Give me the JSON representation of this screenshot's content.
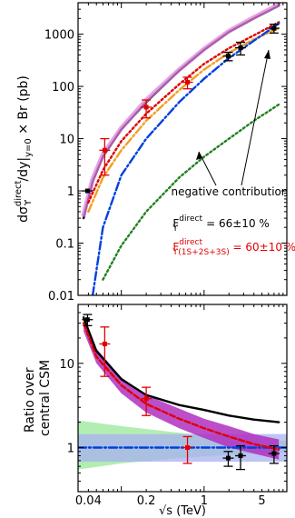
{
  "chart_data": [
    {
      "type": "line",
      "panel": "top",
      "ylabel": {
        "prefix": "dσ",
        "sup": "direct",
        "sub": "ϒ",
        "mid": "/dy|",
        "sub2": "y=0",
        "suffix": " × Br (pb)"
      },
      "yscale": "log",
      "xscale": "log",
      "xlim": [
        0.03,
        10
      ],
      "ylim": [
        0.01,
        4000
      ],
      "y_ticks": [
        {
          "value": 0.01,
          "label": "0.01"
        },
        {
          "value": 0.1,
          "label": "0.1"
        },
        {
          "value": 1,
          "label": "1"
        },
        {
          "value": 10,
          "label": "10"
        },
        {
          "value": 100,
          "label": "100"
        },
        {
          "value": 1000,
          "label": "1000"
        }
      ],
      "series": [
        {
          "style": "solid",
          "color": "#000000",
          "x": [
            0.035,
            0.045,
            0.06,
            0.1,
            0.2,
            0.5,
            1,
            2,
            4,
            8
          ],
          "y": [
            0.3,
            1.5,
            4.5,
            15,
            50,
            200,
            500,
            1100,
            2000,
            3500
          ]
        },
        {
          "style": "dotted-band",
          "color": "#e080e0",
          "x": [
            0.035,
            0.045,
            0.06,
            0.1,
            0.2,
            0.5,
            1,
            2,
            4,
            8
          ],
          "y": [
            0.35,
            1.7,
            5,
            16,
            55,
            210,
            520,
            1150,
            2100,
            3700
          ]
        },
        {
          "style": "dotted",
          "color": "#e00000",
          "x": [
            0.04,
            0.06,
            0.1,
            0.2,
            0.5,
            1,
            2,
            4,
            8
          ],
          "y": [
            0.6,
            2.5,
            9,
            30,
            110,
            270,
            540,
            950,
            1700
          ]
        },
        {
          "style": "dashdot",
          "color": "#f0a020",
          "x": [
            0.04,
            0.06,
            0.1,
            0.2,
            0.5,
            1,
            2,
            4,
            8
          ],
          "y": [
            0.4,
            1.8,
            6,
            22,
            85,
            210,
            440,
            800,
            1300
          ]
        },
        {
          "style": "dashdot",
          "color": "#0040e0",
          "x": [
            0.045,
            0.06,
            0.1,
            0.2,
            0.5,
            1,
            2,
            4,
            8
          ],
          "y": [
            0.01,
            0.2,
            2,
            10,
            50,
            140,
            350,
            750,
            1600
          ]
        },
        {
          "style": "dotted",
          "color": "#208020",
          "x": [
            0.06,
            0.1,
            0.2,
            0.5,
            1,
            2,
            4,
            8
          ],
          "y": [
            0.02,
            0.09,
            0.4,
            1.8,
            4.5,
            10,
            22,
            45
          ]
        }
      ],
      "points": [
        {
          "x": 0.039,
          "y": 1.0,
          "err": 0,
          "color": "#000000"
        },
        {
          "x": 0.063,
          "y": 6,
          "err": 4,
          "color": "#e00000"
        },
        {
          "x": 0.2,
          "y": 40,
          "err": 15,
          "color": "#e00000"
        },
        {
          "x": 0.63,
          "y": 120,
          "err": 30,
          "color": "#e00000"
        },
        {
          "x": 1.96,
          "y": 380,
          "err": 70,
          "color": "#000000"
        },
        {
          "x": 2.76,
          "y": 550,
          "err": 150,
          "color": "#000000"
        },
        {
          "x": 7,
          "y": 1300,
          "err": 250,
          "color": "#000000"
        }
      ],
      "annotations": {
        "negative_label": "negative contribution",
        "frac1": {
          "prefix": "F",
          "sub": "ϒ",
          "sup": "direct",
          "value": " = 66±10 %"
        },
        "frac2": {
          "prefix": "F",
          "sub": "ϒ(1S+2S+3S)",
          "sup": "direct",
          "value": " = 60±10 %"
        }
      }
    },
    {
      "type": "line",
      "panel": "bottom",
      "xlabel": "√s (TeV)",
      "ylabel": [
        "Ratio over",
        "central CSM"
      ],
      "yscale": "log",
      "xscale": "log",
      "xlim": [
        0.03,
        10
      ],
      "ylim": [
        0.3,
        50
      ],
      "x_ticks": [
        {
          "value": 0.04,
          "label": "0.04"
        },
        {
          "value": 0.2,
          "label": "0.2"
        },
        {
          "value": 1,
          "label": "1"
        },
        {
          "value": 5,
          "label": "5"
        }
      ],
      "y_ticks": [
        {
          "value": 1,
          "label": "1"
        },
        {
          "value": 10,
          "label": "10"
        }
      ],
      "series": [
        {
          "style": "dashdot",
          "color": "#0040e0",
          "x": [
            0.03,
            10
          ],
          "y": [
            1,
            1
          ]
        },
        {
          "style": "solid",
          "color": "#000000",
          "x": [
            0.035,
            0.05,
            0.1,
            0.2,
            0.5,
            1,
            2,
            4,
            8
          ],
          "y": [
            35,
            14,
            6.5,
            4.2,
            3.2,
            2.8,
            2.4,
            2.15,
            2.0
          ]
        },
        {
          "style": "dashed",
          "color": "#e00000",
          "x": [
            0.035,
            0.05,
            0.1,
            0.2,
            0.5,
            1,
            2,
            4,
            8
          ],
          "y": [
            30,
            12,
            5.5,
            3.3,
            2.2,
            1.7,
            1.35,
            1.1,
            0.95
          ]
        }
      ],
      "bands": [
        {
          "color": "#98e898",
          "x": [
            0.03,
            0.1,
            0.5,
            2,
            10
          ],
          "lo": [
            0.55,
            0.65,
            0.75,
            0.82,
            0.88
          ],
          "hi": [
            2.1,
            1.8,
            1.5,
            1.3,
            1.2
          ]
        },
        {
          "color": "#a8b0f0",
          "x": [
            0.03,
            10
          ],
          "lo": [
            0.68,
            0.68
          ],
          "hi": [
            1.45,
            1.45
          ]
        },
        {
          "color": "#b030c0",
          "x": [
            0.035,
            0.05,
            0.1,
            0.2,
            0.5,
            1,
            2,
            4,
            8
          ],
          "lo": [
            24,
            10,
            4.4,
            2.6,
            1.7,
            1.3,
            1.0,
            0.85,
            0.72
          ],
          "hi": [
            38,
            15,
            6.8,
            4.2,
            2.9,
            2.2,
            1.8,
            1.45,
            1.25
          ]
        }
      ],
      "points": [
        {
          "x": 0.039,
          "y": 33,
          "err": 5,
          "color": "#000000"
        },
        {
          "x": 0.063,
          "y": 17,
          "err": 10,
          "color": "#e00000"
        },
        {
          "x": 0.2,
          "y": 3.8,
          "err": 1.4,
          "color": "#e00000"
        },
        {
          "x": 0.63,
          "y": 1.0,
          "err": 0.35,
          "color": "#e00000"
        },
        {
          "x": 1.96,
          "y": 0.75,
          "err": 0.15,
          "color": "#000000"
        },
        {
          "x": 2.76,
          "y": 0.8,
          "err": 0.25,
          "color": "#000000"
        },
        {
          "x": 7,
          "y": 0.85,
          "err": 0.2,
          "color": "#000000"
        }
      ]
    }
  ]
}
